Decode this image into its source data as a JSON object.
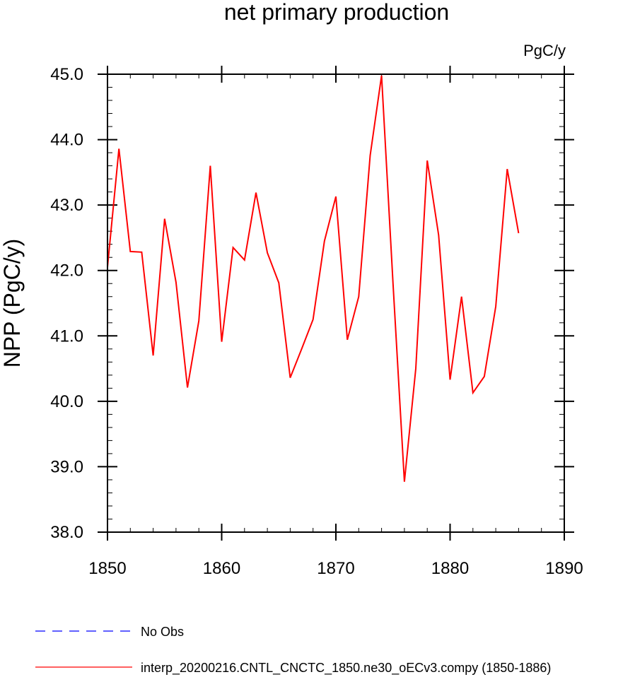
{
  "chart_data": {
    "type": "line",
    "title": "net primary production",
    "units_label": "PgC/y",
    "ylabel": "NPP  (PgC/y)",
    "xlabel": "",
    "xlim": [
      1850,
      1890
    ],
    "ylim": [
      38.0,
      45.0
    ],
    "x_ticks": [
      1850,
      1860,
      1870,
      1880,
      1890
    ],
    "x_tick_labels": [
      "1850",
      "1860",
      "1870",
      "1880",
      "1890"
    ],
    "y_ticks": [
      38.0,
      39.0,
      40.0,
      41.0,
      42.0,
      43.0,
      44.0,
      45.0
    ],
    "y_tick_labels": [
      "38.0",
      "39.0",
      "40.0",
      "41.0",
      "42.0",
      "43.0",
      "44.0",
      "45.0"
    ],
    "grid": false,
    "legend_position": "bottom-left, below plot",
    "series": [
      {
        "name": "interp_20200216.CNTL_CNCTC_1850.ne30_oECv3.compy (1850-1886)",
        "color": "#ff0000",
        "style": "solid",
        "x": [
          1850,
          1851,
          1852,
          1853,
          1854,
          1855,
          1856,
          1857,
          1858,
          1859,
          1860,
          1861,
          1862,
          1863,
          1864,
          1865,
          1866,
          1867,
          1868,
          1869,
          1870,
          1871,
          1872,
          1873,
          1874,
          1875,
          1876,
          1877,
          1878,
          1879,
          1880,
          1881,
          1882,
          1883,
          1884,
          1885,
          1886
        ],
        "values": [
          42.05,
          43.86,
          42.29,
          42.28,
          40.7,
          42.79,
          41.82,
          40.21,
          41.23,
          43.6,
          40.91,
          42.35,
          42.16,
          43.19,
          42.27,
          41.81,
          40.36,
          40.8,
          41.25,
          42.45,
          43.13,
          40.94,
          41.6,
          43.76,
          44.98,
          41.8,
          38.77,
          40.5,
          43.68,
          42.54,
          40.33,
          41.6,
          40.13,
          40.38,
          41.45,
          43.55,
          42.57
        ]
      }
    ],
    "legend": [
      {
        "label": "No Obs",
        "color": "#0000ff",
        "style": "dashed"
      },
      {
        "label": "interp_20200216.CNTL_CNCTC_1850.ne30_oECv3.compy (1850-1886)",
        "color": "#ff0000",
        "style": "solid"
      }
    ]
  }
}
